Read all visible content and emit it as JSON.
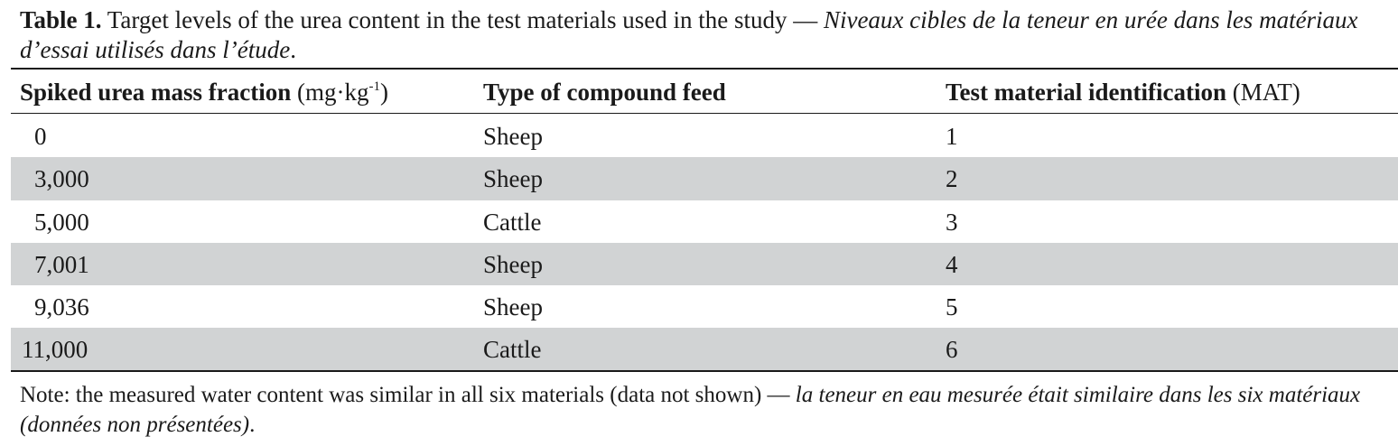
{
  "caption": {
    "label": "Table 1.",
    "text_en": " Target levels of the urea content in the test materials used in the study — ",
    "text_fr": "Niveaux cibles de la teneur en urée dans les matériaux d’essai utilisés dans l’étude",
    "end": "."
  },
  "table": {
    "headers": {
      "col1_bold": "Spiked urea mass fraction",
      "col1_unit_pre": " (mg·kg",
      "col1_unit_sup": "-1",
      "col1_unit_post": ")",
      "col2": "Type of compound feed",
      "col3_bold": "Test material identification",
      "col3_unit": " (MAT)"
    },
    "rows": [
      {
        "fraction": "0",
        "feed": "Sheep",
        "mat": "1"
      },
      {
        "fraction": "3,000",
        "feed": "Sheep",
        "mat": "2"
      },
      {
        "fraction": "5,000",
        "feed": "Cattle",
        "mat": "3"
      },
      {
        "fraction": "7,001",
        "feed": "Sheep",
        "mat": "4"
      },
      {
        "fraction": "9,036",
        "feed": "Sheep",
        "mat": "5"
      },
      {
        "fraction": "11,000",
        "feed": "Cattle",
        "mat": "6"
      }
    ]
  },
  "note": {
    "text_en": "Note: the measured water content was similar in all six materials (data not shown) — ",
    "text_fr": "la teneur en eau mesurée était similaire dans les six matériaux (données non présentées)",
    "end": "."
  }
}
